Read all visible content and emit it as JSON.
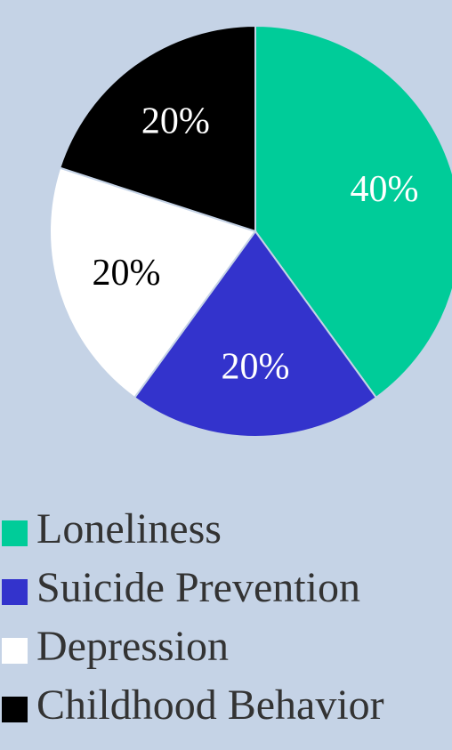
{
  "chart_data": {
    "type": "pie",
    "title": "",
    "slices": [
      {
        "label": "Loneliness",
        "value": 40,
        "display": "40%",
        "color": "#00cc99",
        "text_color": "#ffffff"
      },
      {
        "label": "Suicide Prevention",
        "value": 20,
        "display": "20%",
        "color": "#3333cc",
        "text_color": "#ffffff"
      },
      {
        "label": "Depression",
        "value": 20,
        "display": "20%",
        "color": "#ffffff",
        "text_color": "#000000"
      },
      {
        "label": "Childhood Behavior",
        "value": 20,
        "display": "20%",
        "color": "#000000",
        "text_color": "#ffffff"
      }
    ],
    "start_angle_deg": 0,
    "direction": "clockwise",
    "legend_position": "bottom"
  },
  "legend": {
    "items": [
      {
        "label": "Loneliness",
        "color": "#00cc99"
      },
      {
        "label": "Suicide Prevention",
        "color": "#3333cc"
      },
      {
        "label": "Depression",
        "color": "#ffffff"
      },
      {
        "label": "Childhood Behavior",
        "color": "#000000"
      }
    ]
  },
  "colors": {
    "background": "#c5d3e6",
    "slice_border": "#c5d3e6"
  }
}
